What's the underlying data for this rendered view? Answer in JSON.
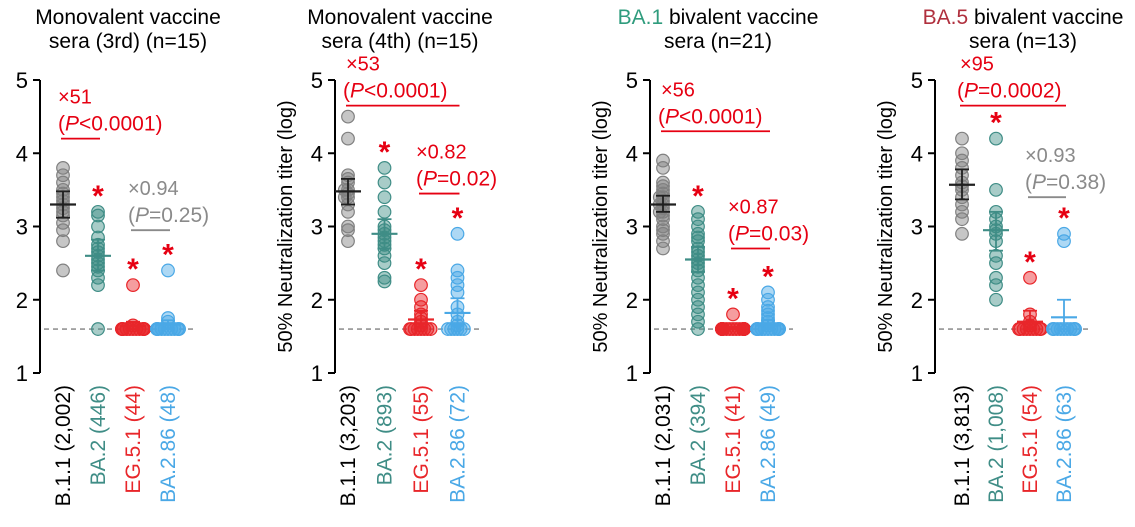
{
  "colors": {
    "axis": "#000000",
    "dashed": "#808080",
    "B.1.1": "#808080",
    "BA.2": "#3f8d86",
    "EG.5.1": "#e8262a",
    "BA.2.86": "#4aa8e6",
    "sig": "#e60012",
    "ns": "#8a8a8a",
    "title_BA1": "#2f9c7d",
    "title_BA5": "#b0303e"
  },
  "chart_data": [
    {
      "type": "scatter",
      "title_lines": [
        "Monovalent vaccine",
        "sera (3rd) (n=15)"
      ],
      "ylabel": "",
      "ylim": [
        1,
        5
      ],
      "yticks": [
        "1",
        "2",
        "3",
        "4",
        "5"
      ],
      "limit_of_detection": 1.6,
      "categories": [
        "B.1.1 (2,002)",
        "BA.2 (446)",
        "EG.5.1 (44)",
        "BA.2.86 (48)"
      ],
      "series": [
        {
          "key": "B.1.1",
          "values": [
            3.8,
            3.7,
            3.6,
            3.5,
            3.45,
            3.4,
            3.35,
            3.3,
            3.25,
            3.2,
            3.15,
            3.05,
            2.95,
            2.8,
            2.4
          ],
          "mean": 3.3,
          "ci": [
            3.12,
            3.48
          ]
        },
        {
          "key": "BA.2",
          "values": [
            3.2,
            3.15,
            3.0,
            2.85,
            2.75,
            2.7,
            2.65,
            2.6,
            2.55,
            2.5,
            2.45,
            2.4,
            2.3,
            2.2,
            1.6
          ],
          "mean": 2.6,
          "ci": [
            2.4,
            2.82
          ]
        },
        {
          "key": "EG.5.1",
          "values": [
            2.2,
            1.65,
            1.6,
            1.6,
            1.6,
            1.6,
            1.6,
            1.6,
            1.6,
            1.6,
            1.6,
            1.6,
            1.6,
            1.6,
            1.6
          ],
          "mean": 1.64,
          "ci": [
            1.6,
            1.7
          ]
        },
        {
          "key": "BA.2.86",
          "values": [
            2.4,
            1.75,
            1.7,
            1.6,
            1.6,
            1.6,
            1.6,
            1.6,
            1.6,
            1.6,
            1.6,
            1.6,
            1.6,
            1.6,
            1.6
          ],
          "mean": 1.66,
          "ci": [
            1.6,
            1.72
          ]
        }
      ],
      "stars": [
        1,
        2,
        3
      ],
      "comparisons": [
        {
          "from": 0,
          "to": 1,
          "fold": "×51",
          "p": "0.0001",
          "op": "<",
          "y": 4.2,
          "sig": true
        },
        {
          "from": 2,
          "to": 3,
          "fold": "×0.94",
          "p": "0.25",
          "op": "=",
          "y": 2.95,
          "sig": false
        }
      ]
    },
    {
      "type": "scatter",
      "title_lines": [
        "Monovalent vaccine",
        "sera (4th) (n=15)"
      ],
      "ylabel": "50% Neutralization titer (log)",
      "ylim": [
        1,
        5
      ],
      "yticks": [
        "1",
        "2",
        "3",
        "4",
        "5"
      ],
      "limit_of_detection": 1.6,
      "categories": [
        "B.1.1 (3,203)",
        "BA.2 (893)",
        "EG.5.1 (55)",
        "BA.2.86 (72)"
      ],
      "series": [
        {
          "key": "B.1.1",
          "values": [
            4.5,
            4.2,
            3.7,
            3.65,
            3.6,
            3.5,
            3.5,
            3.45,
            3.4,
            3.4,
            3.3,
            3.2,
            3.0,
            2.95,
            2.8
          ],
          "mean": 3.48,
          "ci": [
            3.3,
            3.65
          ]
        },
        {
          "key": "BA.2",
          "values": [
            3.8,
            3.6,
            3.4,
            3.2,
            3.0,
            2.95,
            2.9,
            2.85,
            2.8,
            2.75,
            2.7,
            2.6,
            2.5,
            2.3,
            2.25
          ],
          "mean": 2.9,
          "ci": [
            2.7,
            3.1
          ]
        },
        {
          "key": "EG.5.1",
          "values": [
            2.2,
            2.0,
            1.9,
            1.8,
            1.75,
            1.7,
            1.65,
            1.6,
            1.6,
            1.6,
            1.6,
            1.6,
            1.6,
            1.6,
            1.6
          ],
          "mean": 1.73,
          "ci": [
            1.62,
            1.85
          ]
        },
        {
          "key": "BA.2.86",
          "values": [
            2.9,
            2.4,
            2.3,
            2.2,
            2.1,
            1.9,
            1.8,
            1.7,
            1.65,
            1.6,
            1.6,
            1.6,
            1.6,
            1.6,
            1.6
          ],
          "mean": 1.82,
          "ci": [
            1.65,
            2.02
          ]
        }
      ],
      "stars": [
        1,
        2,
        3
      ],
      "comparisons": [
        {
          "from": 0,
          "to": 3,
          "fold": "×53",
          "p": "0.0001",
          "op": "<",
          "y": 4.65,
          "sig": true
        },
        {
          "from": 2,
          "to": 3,
          "fold": "×0.82",
          "p": "0.02",
          "op": "=",
          "y": 3.45,
          "sig": true
        }
      ]
    },
    {
      "type": "scatter",
      "title_lines": [
        "BA.1 bivalent vaccine",
        "sera (n=21)"
      ],
      "title_variant": "BA.1",
      "title_variant_color": "title_BA1",
      "ylabel": "50% Neutralization titer (log)",
      "ylim": [
        1,
        5
      ],
      "yticks": [
        "1",
        "2",
        "3",
        "4",
        "5"
      ],
      "limit_of_detection": 1.6,
      "categories": [
        "B.1.1 (2,031)",
        "BA.2 (394)",
        "EG.5.1 (41)",
        "BA.2.86 (49)"
      ],
      "series": [
        {
          "key": "B.1.1",
          "values": [
            3.9,
            3.8,
            3.6,
            3.55,
            3.5,
            3.45,
            3.4,
            3.4,
            3.35,
            3.3,
            3.3,
            3.25,
            3.2,
            3.2,
            3.15,
            3.1,
            3.0,
            2.95,
            2.9,
            2.8,
            2.7
          ],
          "mean": 3.3,
          "ci": [
            3.2,
            3.42
          ]
        },
        {
          "key": "BA.2",
          "values": [
            3.2,
            3.1,
            3.0,
            2.9,
            2.85,
            2.8,
            2.7,
            2.65,
            2.6,
            2.55,
            2.5,
            2.45,
            2.4,
            2.3,
            2.2,
            2.1,
            2.0,
            1.9,
            1.8,
            1.7,
            1.6
          ],
          "mean": 2.55,
          "ci": [
            2.38,
            2.72
          ]
        },
        {
          "key": "EG.5.1",
          "values": [
            1.8,
            1.6,
            1.6,
            1.6,
            1.6,
            1.6,
            1.6,
            1.6,
            1.6,
            1.6,
            1.6,
            1.6,
            1.6,
            1.6,
            1.6,
            1.6,
            1.6,
            1.6,
            1.6,
            1.6,
            1.6
          ],
          "mean": 1.61,
          "ci": [
            1.6,
            1.63
          ]
        },
        {
          "key": "BA.2.86",
          "values": [
            2.1,
            2.0,
            1.9,
            1.85,
            1.8,
            1.75,
            1.7,
            1.65,
            1.6,
            1.6,
            1.6,
            1.6,
            1.6,
            1.6,
            1.6,
            1.6,
            1.6,
            1.6,
            1.6,
            1.6,
            1.6
          ],
          "mean": 1.65,
          "ci": [
            1.6,
            1.72
          ]
        }
      ],
      "stars": [
        1,
        2,
        3
      ],
      "comparisons": [
        {
          "from": 0,
          "to": 3,
          "fold": "×56",
          "p": "0.0001",
          "op": "<",
          "y": 4.3,
          "sig": true
        },
        {
          "from": 2,
          "to": 3,
          "fold": "×0.87",
          "p": "0.03",
          "op": "=",
          "y": 2.7,
          "sig": true
        }
      ]
    },
    {
      "type": "scatter",
      "title_lines": [
        "BA.5 bivalent vaccine",
        "sera (n=13)"
      ],
      "title_variant": "BA.5",
      "title_variant_color": "title_BA5",
      "ylabel": "50% Neutralization titer (log)",
      "ylim": [
        1,
        5
      ],
      "yticks": [
        "1",
        "2",
        "3",
        "4",
        "5"
      ],
      "limit_of_detection": 1.6,
      "categories": [
        "B.1.1 (3,813)",
        "BA.2 (1,008)",
        "EG.5.1 (54)",
        "BA.2.86 (63)"
      ],
      "series": [
        {
          "key": "B.1.1",
          "values": [
            4.2,
            4.0,
            3.9,
            3.8,
            3.7,
            3.6,
            3.55,
            3.5,
            3.4,
            3.3,
            3.2,
            3.1,
            2.9
          ],
          "mean": 3.57,
          "ci": [
            3.37,
            3.78
          ]
        },
        {
          "key": "BA.2",
          "values": [
            4.2,
            3.5,
            3.2,
            3.1,
            3.0,
            2.95,
            2.9,
            2.8,
            2.6,
            2.5,
            2.3,
            2.2,
            2.0
          ],
          "mean": 2.95,
          "ci": [
            2.67,
            3.2
          ]
        },
        {
          "key": "EG.5.1",
          "values": [
            2.3,
            1.8,
            1.7,
            1.65,
            1.6,
            1.6,
            1.6,
            1.6,
            1.6,
            1.6,
            1.6,
            1.6,
            1.6
          ],
          "mean": 1.7,
          "ci": [
            1.6,
            1.85
          ]
        },
        {
          "key": "BA.2.86",
          "values": [
            2.9,
            2.8,
            1.6,
            1.6,
            1.6,
            1.6,
            1.6,
            1.6,
            1.6,
            1.6,
            1.6,
            1.6,
            1.6
          ],
          "mean": 1.76,
          "ci": [
            1.6,
            2.0
          ]
        }
      ],
      "stars": [
        1,
        2,
        3
      ],
      "comparisons": [
        {
          "from": 0,
          "to": 3,
          "fold": "×95",
          "p": "0.0002",
          "op": "=",
          "y": 4.65,
          "sig": true
        },
        {
          "from": 2,
          "to": 3,
          "fold": "×0.93",
          "p": "0.38",
          "op": "=",
          "y": 3.4,
          "sig": false
        }
      ]
    }
  ]
}
